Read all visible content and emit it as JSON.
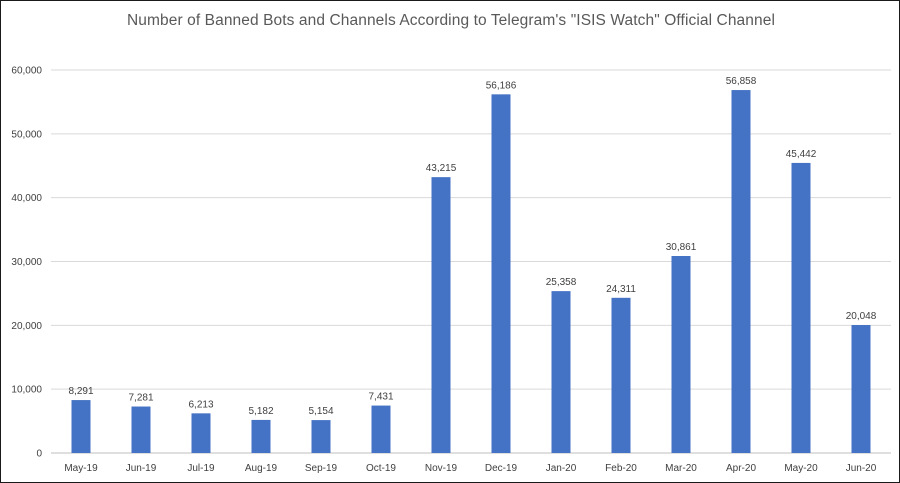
{
  "chart_data": {
    "type": "bar",
    "title": "Number of Banned Bots and Channels According to Telegram's \"ISIS Watch\"  Official Channel",
    "categories": [
      "May-19",
      "Jun-19",
      "Jul-19",
      "Aug-19",
      "Sep-19",
      "Oct-19",
      "Nov-19",
      "Dec-19",
      "Jan-20",
      "Feb-20",
      "Mar-20",
      "Apr-20",
      "May-20",
      "Jun-20"
    ],
    "values": [
      8291,
      7281,
      6213,
      5182,
      5154,
      7431,
      43215,
      56186,
      25358,
      24311,
      30861,
      56858,
      45442,
      20048
    ],
    "data_labels": [
      "8,291",
      "7,281",
      "6,213",
      "5,182",
      "5,154",
      "7,431",
      "43,215",
      "56,186",
      "25,358",
      "24,311",
      "30,861",
      "56,858",
      "45,442",
      "20,048"
    ],
    "y_ticks": [
      "0",
      "10,000",
      "20,000",
      "30,000",
      "40,000",
      "50,000",
      "60,000"
    ],
    "ylim": [
      0,
      60000
    ],
    "xlabel": "",
    "ylabel": "",
    "grid": true,
    "legend": "none",
    "colors": {
      "bar": "#4472c4",
      "grid": "#d9d9d9",
      "text": "#404040",
      "title": "#595959"
    }
  }
}
